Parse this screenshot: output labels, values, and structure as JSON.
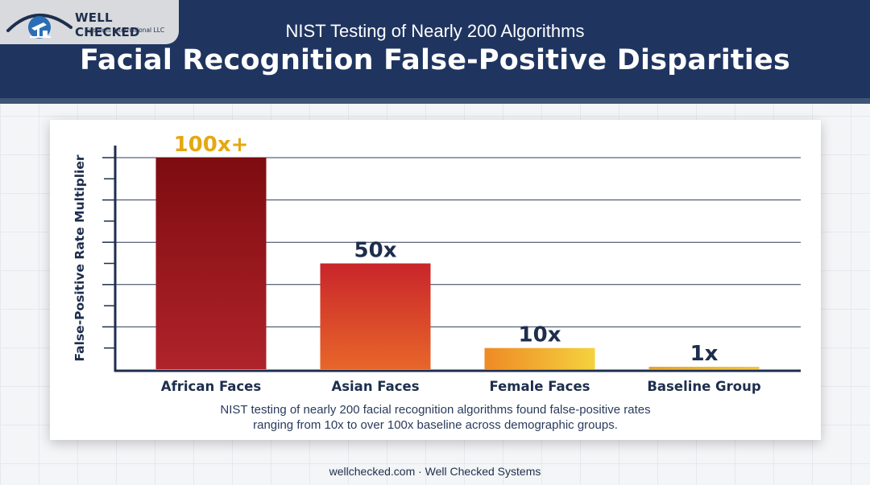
{
  "brand": {
    "name": "WELL CHECKED",
    "tagline": "Systems International LLC"
  },
  "header": {
    "subtitle": "NIST Testing of Nearly 200 Algorithms",
    "title": "Facial Recognition False-Positive Disparities"
  },
  "chart_data": {
    "type": "bar",
    "categories": [
      "African Faces",
      "Asian Faces",
      "Female Faces",
      "Baseline Group"
    ],
    "values": [
      100,
      50,
      10,
      1
    ],
    "data_labels": [
      "100x+",
      "50x",
      "10x",
      "1x"
    ],
    "ylabel": "False-Positive Rate Multiplier",
    "ylim": [
      0,
      100
    ],
    "grid": true,
    "colors": {
      "bar1": [
        "#7d0c10",
        "#b0232a"
      ],
      "bar2": [
        "#c8252a",
        "#e8662a"
      ],
      "bar3": [
        "#ee8a25",
        "#f5d23e"
      ],
      "bar4": [
        "#e8a32c",
        "#f3c742"
      ],
      "label_gold": "#e5a812",
      "label_navy": "#1e2e4d",
      "axis": "#1e2e4d",
      "grid": "#2d3d5c"
    }
  },
  "caption": {
    "line1": "NIST testing of nearly 200 facial recognition algorithms found false-positive rates",
    "line2": "ranging from 10x to over 100x baseline across demographic groups."
  },
  "footer": {
    "text": "wellchecked.com · Well Checked Systems"
  }
}
